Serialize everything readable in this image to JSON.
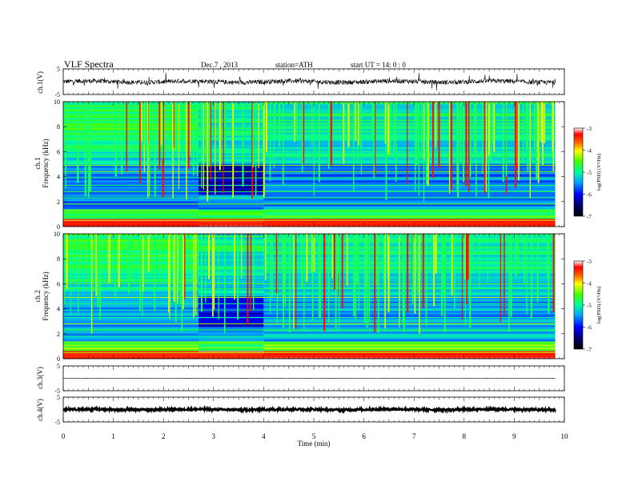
{
  "header": {
    "title": "VLF  Spectra",
    "date": "Dec.7  , 2013",
    "station": "station=ATH",
    "start_ut": "start  UT  =    14: 0  : 0"
  },
  "chart_data": [
    {
      "id": "ch1-waveform",
      "type": "line",
      "ylabel": "ch.1(V)",
      "ylim": [
        -5,
        5
      ],
      "yticks": [
        "5",
        "-5"
      ],
      "xlim": [
        0,
        10
      ],
      "data_xrange": [
        0,
        9.82
      ],
      "description_values": {
        "baseline_v": 0.0,
        "noise_amplitude_v": 0.9
      }
    },
    {
      "id": "ch1-spectrogram",
      "type": "heatmap",
      "ylabel": "Frequency  (kHz)",
      "channel_label": "ch.1",
      "ylim": [
        0,
        10
      ],
      "yticks": [
        "0",
        "2",
        "4",
        "6",
        "8",
        "10"
      ],
      "xlim": [
        0,
        10
      ],
      "data_xrange": [
        0,
        9.82
      ],
      "colorbar": {
        "label": "log(PSD) (V²/Hz)",
        "range": [
          -7,
          -3
        ],
        "ticks": [
          "-3",
          "-4",
          "-5",
          "-6",
          "-7"
        ]
      },
      "quiet_interval_min": [
        2.7,
        4.0
      ]
    },
    {
      "id": "ch2-spectrogram",
      "type": "heatmap",
      "ylabel": "Frequency  (kHz)",
      "channel_label": "ch.2",
      "ylim": [
        0,
        10
      ],
      "yticks": [
        "0",
        "2",
        "4",
        "6",
        "8",
        "10"
      ],
      "xlim": [
        0,
        10
      ],
      "data_xrange": [
        0,
        9.82
      ],
      "colorbar": {
        "label": "log(PSD) (V²/Hz)",
        "range": [
          -7,
          -3
        ],
        "ticks": [
          "-3",
          "-4",
          "-5",
          "-6",
          "-7"
        ]
      },
      "quiet_interval_min": [
        2.7,
        4.0
      ]
    },
    {
      "id": "ch3-waveform",
      "type": "line",
      "ylabel": "ch.3(V)",
      "ylim": [
        -5,
        5
      ],
      "yticks": [
        "5",
        "-5"
      ],
      "xlim": [
        0,
        10
      ],
      "data_xrange": [
        0,
        9.82
      ],
      "description_values": {
        "baseline_v": 0.0,
        "noise_amplitude_v": 0.05
      }
    },
    {
      "id": "ch4-waveform",
      "type": "line",
      "ylabel": "ch.4(V)",
      "ylim": [
        -5,
        5
      ],
      "yticks": [
        "5",
        "-5"
      ],
      "xlim": [
        0,
        10
      ],
      "data_xrange": [
        0,
        9.82
      ],
      "description_values": {
        "baseline_v": 0.0,
        "noise_amplitude_v": 0.4
      }
    }
  ],
  "xaxis": {
    "label": "Time  (min)",
    "ticks": [
      "0",
      "1",
      "2",
      "3",
      "4",
      "5",
      "6",
      "7",
      "8",
      "9",
      "10"
    ]
  }
}
